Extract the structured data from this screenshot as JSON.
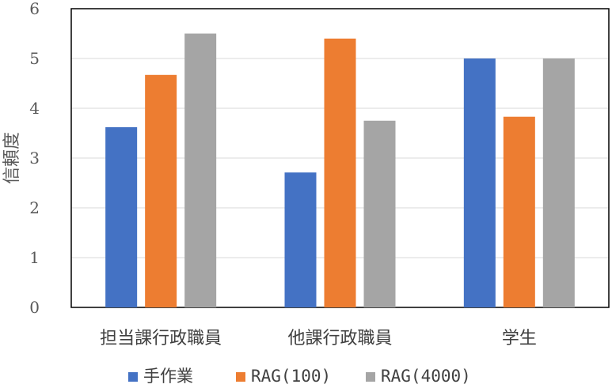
{
  "chart_data": {
    "type": "bar",
    "title": "",
    "xlabel": "",
    "ylabel": "信頼度",
    "ylim": [
      0,
      6
    ],
    "yticks": [
      0,
      1,
      2,
      3,
      4,
      5,
      6
    ],
    "grid": true,
    "legend_position": "bottom",
    "categories": [
      "担当課行政職員",
      "他課行政職員",
      "学生"
    ],
    "series": [
      {
        "name": "手作業",
        "color": "#4472C4",
        "values": [
          3.62,
          2.71,
          5.0
        ]
      },
      {
        "name": "RAG(100)",
        "color": "#ED7D31",
        "values": [
          4.67,
          5.4,
          3.83
        ]
      },
      {
        "name": "RAG(4000)",
        "color": "#A5A5A5",
        "values": [
          5.5,
          3.75,
          5.0
        ]
      }
    ]
  }
}
